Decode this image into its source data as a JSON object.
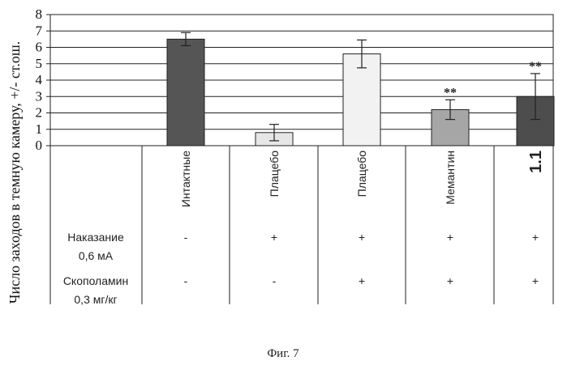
{
  "chart_data": {
    "type": "bar",
    "ylabel": "Число заходов в темную камеру, +/- ст.ош.",
    "ylim": [
      0,
      8
    ],
    "yticks": [
      "0",
      "1",
      "2",
      "3",
      "4",
      "5",
      "6",
      "7",
      "8"
    ],
    "grid": true,
    "categories": [
      "Интактные",
      "Плацебо",
      "Плацебо",
      "Мемантин",
      "1.1"
    ],
    "values": [
      6.5,
      0.8,
      5.6,
      2.2,
      3.0
    ],
    "errors": [
      0.4,
      0.5,
      0.85,
      0.6,
      1.4
    ],
    "bar_colors": [
      "#555555",
      "#e6e6e6",
      "#f2f2f2",
      "#a6a6a6",
      "#4d4d4d"
    ],
    "annotations": [
      "",
      "",
      "",
      "**",
      "**"
    ]
  },
  "table": {
    "rows": [
      {
        "label_lines": [
          "Наказание",
          "0,6 мА"
        ],
        "values": [
          "-",
          "+",
          "+",
          "+",
          "+"
        ]
      },
      {
        "label_lines": [
          "Скополамин",
          "0,3 мг/кг"
        ],
        "values": [
          "-",
          "-",
          "+",
          "+",
          "+"
        ]
      }
    ]
  },
  "caption": "Фиг. 7"
}
